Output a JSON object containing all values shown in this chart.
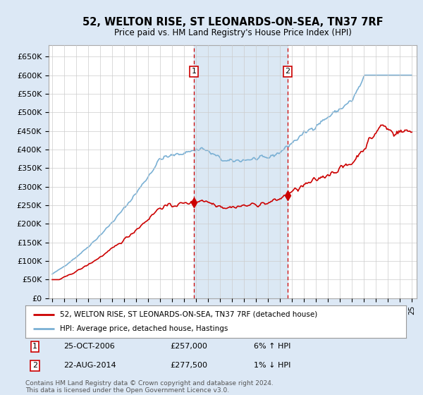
{
  "title": "52, WELTON RISE, ST LEONARDS-ON-SEA, TN37 7RF",
  "subtitle": "Price paid vs. HM Land Registry's House Price Index (HPI)",
  "legend_line1": "52, WELTON RISE, ST LEONARDS-ON-SEA, TN37 7RF (detached house)",
  "legend_line2": "HPI: Average price, detached house, Hastings",
  "annotation1_label": "1",
  "annotation1_date": "25-OCT-2006",
  "annotation1_price": "£257,000",
  "annotation1_hpi": "6% ↑ HPI",
  "annotation1_year": 2006.82,
  "annotation1_value": 257000,
  "annotation2_label": "2",
  "annotation2_date": "22-AUG-2014",
  "annotation2_price": "£277,500",
  "annotation2_hpi": "1% ↓ HPI",
  "annotation2_year": 2014.64,
  "annotation2_value": 277500,
  "yticks": [
    0,
    50000,
    100000,
    150000,
    200000,
    250000,
    300000,
    350000,
    400000,
    450000,
    500000,
    550000,
    600000,
    650000
  ],
  "ytick_labels": [
    "£0",
    "£50K",
    "£100K",
    "£150K",
    "£200K",
    "£250K",
    "£300K",
    "£350K",
    "£400K",
    "£450K",
    "£500K",
    "£550K",
    "£600K",
    "£650K"
  ],
  "ylim": [
    0,
    680000
  ],
  "xlim_start": 1994.7,
  "xlim_end": 2025.4,
  "background_color": "#dce8f5",
  "plot_bg_color": "#ffffff",
  "grid_color": "#cccccc",
  "line1_color": "#cc0000",
  "line2_color": "#7ab0d4",
  "vline_color": "#cc0000",
  "annotation_box_color": "#cc0000",
  "shade_color": "#ccdff0",
  "footer_text": "Contains HM Land Registry data © Crown copyright and database right 2024.\nThis data is licensed under the Open Government Licence v3.0."
}
